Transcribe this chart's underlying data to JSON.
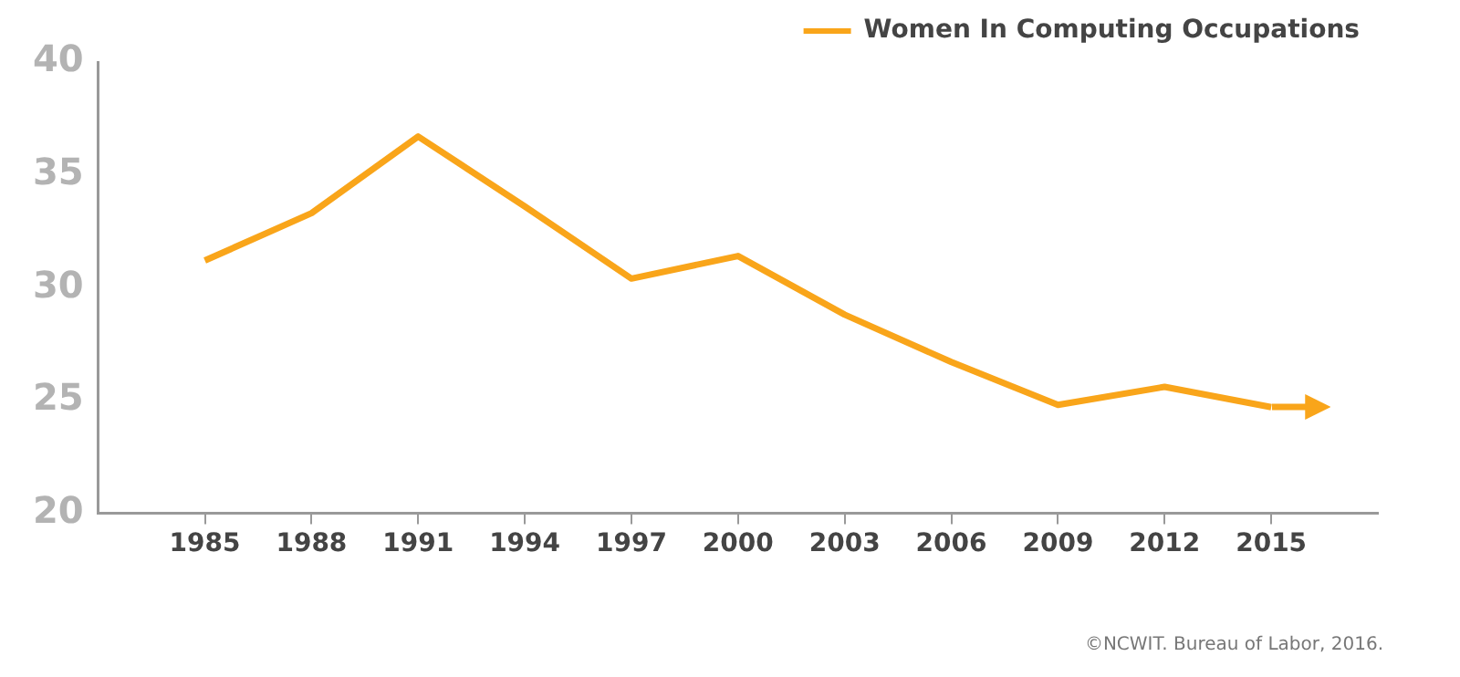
{
  "chart_data": {
    "type": "line",
    "categories": [
      "1985",
      "1988",
      "1991",
      "1994",
      "1997",
      "2000",
      "2003",
      "2006",
      "2009",
      "2012",
      "2015"
    ],
    "series": [
      {
        "name": "Women In Computing Occupations",
        "color": "#f9a51a",
        "values": [
          31.2,
          33.3,
          36.7,
          33.6,
          30.4,
          31.4,
          28.8,
          26.7,
          24.8,
          25.6,
          24.7
        ]
      }
    ],
    "ylim": [
      20,
      40
    ],
    "yticks": [
      20,
      25,
      30,
      35,
      40
    ],
    "grid": false,
    "legend": "top right",
    "marker": "none",
    "line_style": "solid",
    "annotations": [
      "©NCWIT. Bureau of Labor, 2016."
    ]
  }
}
